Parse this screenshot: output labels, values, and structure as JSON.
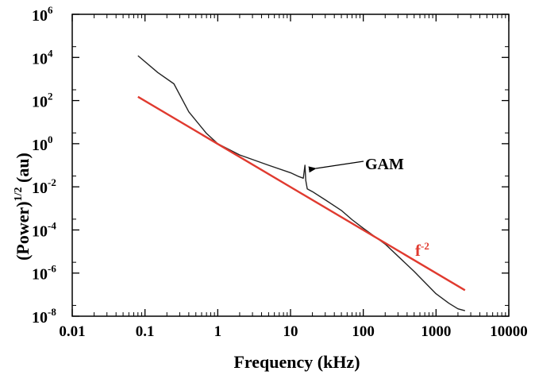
{
  "chart_data": {
    "type": "line",
    "xscale": "log",
    "yscale": "log",
    "xlim": [
      0.01,
      10000
    ],
    "ylim": [
      1e-08,
      1000000.0
    ],
    "xlabel": "Frequency (kHz)",
    "ylabel": {
      "base": "(Power)",
      "exp": "1/2",
      "unit": "(au)"
    },
    "xticks": [
      {
        "value": 0.01,
        "label": "0.01"
      },
      {
        "value": 0.1,
        "label": "0.1"
      },
      {
        "value": 1,
        "label": "1"
      },
      {
        "value": 10,
        "label": "10"
      },
      {
        "value": 100,
        "label": "100"
      },
      {
        "value": 1000,
        "label": "1000"
      },
      {
        "value": 10000,
        "label": "10000"
      }
    ],
    "yticks": [
      {
        "value": 1e-08,
        "base": "10",
        "exp": "-8"
      },
      {
        "value": 1e-06,
        "base": "10",
        "exp": "-6"
      },
      {
        "value": 0.0001,
        "base": "10",
        "exp": "-4"
      },
      {
        "value": 0.01,
        "base": "10",
        "exp": "-2"
      },
      {
        "value": 1,
        "base": "10",
        "exp": "0"
      },
      {
        "value": 100.0,
        "base": "10",
        "exp": "2"
      },
      {
        "value": 10000.0,
        "base": "10",
        "exp": "4"
      },
      {
        "value": 1000000.0,
        "base": "10",
        "exp": "6"
      }
    ],
    "series": [
      {
        "color": "#222222",
        "x": [
          0.08,
          0.15,
          0.25,
          0.4,
          0.7,
          1,
          2,
          5,
          10,
          13,
          15,
          15.8,
          16.2,
          17,
          20,
          30,
          50,
          70,
          100,
          200,
          500,
          1000,
          1500,
          2000,
          2500
        ],
        "y": [
          12000,
          2000,
          600,
          30,
          3,
          1,
          0.3,
          0.1,
          0.045,
          0.03,
          0.025,
          0.1,
          0.02,
          0.008,
          0.006,
          0.0025,
          0.0008,
          0.0003,
          0.00012,
          2.2e-05,
          1.2e-06,
          1.1e-07,
          4e-08,
          2.2e-08,
          1.8e-08
        ]
      },
      {
        "name": "f-2",
        "color": "#e03a2f",
        "x": [
          0.08,
          2500
        ],
        "y": [
          150,
          1.6e-07
        ]
      }
    ],
    "annotations": [
      {
        "text": "GAM",
        "x": 16,
        "y": 0.1
      },
      {
        "text": "f",
        "exp": "-2"
      }
    ]
  }
}
